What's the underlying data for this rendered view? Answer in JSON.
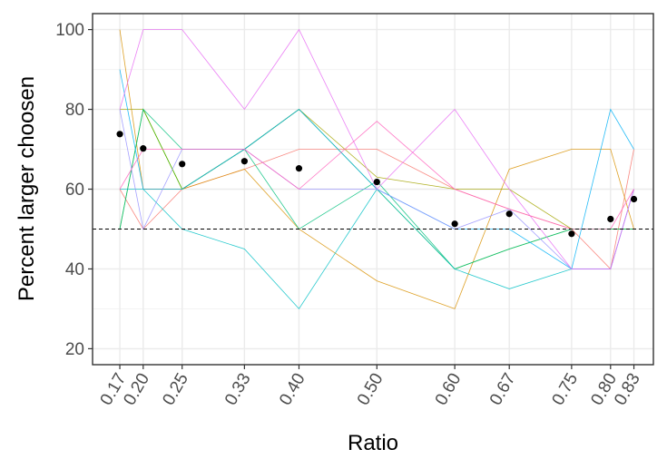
{
  "chart_data": {
    "type": "line",
    "title": "",
    "xlabel": "Ratio",
    "ylabel": "Percent larger choosen",
    "x": [
      0.17,
      0.2,
      0.25,
      0.33,
      0.4,
      0.5,
      0.6,
      0.67,
      0.75,
      0.8,
      0.83
    ],
    "x_tick_labels": [
      "0.17",
      "0.20",
      "0.25",
      "0.33",
      "0.40",
      "0.50",
      "0.60",
      "0.67",
      "0.75",
      "0.80",
      "0.83"
    ],
    "xlim": [
      0.135,
      0.855
    ],
    "y_ticks": [
      20,
      40,
      60,
      80,
      100
    ],
    "ylim": [
      16,
      104
    ],
    "grid": true,
    "reference_line": {
      "y": 50,
      "style": "dashed"
    },
    "series": [
      {
        "color": "#F8766D",
        "values": [
          60,
          50,
          60,
          65,
          70,
          70,
          60,
          55,
          50,
          40,
          70
        ]
      },
      {
        "color": "#D89000",
        "values": [
          100,
          60,
          60,
          65,
          50,
          37,
          30,
          65,
          70,
          70,
          50
        ]
      },
      {
        "color": "#A3A500",
        "values": [
          80,
          80,
          60,
          70,
          80,
          63,
          60,
          60,
          50,
          50,
          50
        ]
      },
      {
        "color": "#39B600",
        "values": [
          50,
          80,
          60,
          70,
          80,
          60,
          40,
          45,
          50,
          50,
          50
        ]
      },
      {
        "color": "#00BF7D",
        "values": [
          50,
          80,
          70,
          70,
          50,
          62,
          40,
          45,
          50,
          50,
          50
        ]
      },
      {
        "color": "#00BFC4",
        "values": [
          60,
          60,
          50,
          45,
          30,
          60,
          40,
          35,
          40,
          40,
          60
        ]
      },
      {
        "color": "#00B0F6",
        "values": [
          90,
          60,
          60,
          70,
          80,
          60,
          50,
          50,
          40,
          80,
          70
        ]
      },
      {
        "color": "#9590FF",
        "values": [
          80,
          50,
          70,
          70,
          60,
          60,
          50,
          55,
          40,
          40,
          60
        ]
      },
      {
        "color": "#E76BF3",
        "values": [
          80,
          100,
          100,
          80,
          100,
          60,
          80,
          60,
          40,
          40,
          60
        ]
      },
      {
        "color": "#FF62BC",
        "values": [
          60,
          70,
          70,
          70,
          60,
          77,
          60,
          55,
          50,
          50,
          60
        ]
      }
    ],
    "means": {
      "color": "#000000",
      "values": [
        73.8,
        70.2,
        66.3,
        67.0,
        65.2,
        61.8,
        51.3,
        53.8,
        48.8,
        52.5,
        57.5
      ]
    }
  }
}
